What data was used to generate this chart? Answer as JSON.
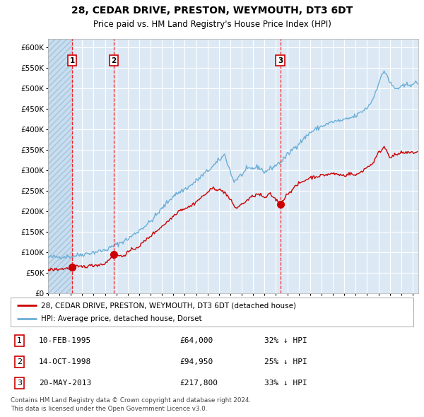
{
  "title": "28, CEDAR DRIVE, PRESTON, WEYMOUTH, DT3 6DT",
  "subtitle": "Price paid vs. HM Land Registry's House Price Index (HPI)",
  "hpi_label": "HPI: Average price, detached house, Dorset",
  "property_label": "28, CEDAR DRIVE, PRESTON, WEYMOUTH, DT3 6DT (detached house)",
  "transactions": [
    {
      "num": 1,
      "date": "10-FEB-1995",
      "price": 64000,
      "price_str": "£64,000",
      "pct": "32%",
      "year_x": 1995.11
    },
    {
      "num": 2,
      "date": "14-OCT-1998",
      "price": 94950,
      "price_str": "£94,950",
      "pct": "25%",
      "year_x": 1998.78
    },
    {
      "num": 3,
      "date": "20-MAY-2013",
      "price": 217800,
      "price_str": "£217,800",
      "pct": "33%",
      "year_x": 2013.38
    }
  ],
  "hpi_color": "#6baed6",
  "property_color": "#cc0000",
  "plot_bg_color": "#dce9f5",
  "grid_color": "#ffffff",
  "dashed_line_color": "#ff0000",
  "ylim": [
    0,
    620000
  ],
  "yticks": [
    0,
    50000,
    100000,
    150000,
    200000,
    250000,
    300000,
    350000,
    400000,
    450000,
    500000,
    550000,
    600000
  ],
  "xlim_start": 1993.0,
  "xlim_end": 2025.5,
  "footer_line1": "Contains HM Land Registry data © Crown copyright and database right 2024.",
  "footer_line2": "This data is licensed under the Open Government Licence v3.0.",
  "hpi_anchors": [
    [
      1993.0,
      88000
    ],
    [
      1995.0,
      90000
    ],
    [
      1997.0,
      100000
    ],
    [
      1998.0,
      105000
    ],
    [
      2000.0,
      132000
    ],
    [
      2002.0,
      175000
    ],
    [
      2004.0,
      238000
    ],
    [
      2005.5,
      262000
    ],
    [
      2007.5,
      310000
    ],
    [
      2008.5,
      338000
    ],
    [
      2009.3,
      272000
    ],
    [
      2010.5,
      302000
    ],
    [
      2011.5,
      308000
    ],
    [
      2012.0,
      295000
    ],
    [
      2013.0,
      312000
    ],
    [
      2013.5,
      322000
    ],
    [
      2014.5,
      352000
    ],
    [
      2015.5,
      378000
    ],
    [
      2016.0,
      392000
    ],
    [
      2017.0,
      407000
    ],
    [
      2018.0,
      418000
    ],
    [
      2019.0,
      422000
    ],
    [
      2020.0,
      432000
    ],
    [
      2021.0,
      452000
    ],
    [
      2021.5,
      472000
    ],
    [
      2022.0,
      512000
    ],
    [
      2022.5,
      542000
    ],
    [
      2022.75,
      532000
    ],
    [
      2023.0,
      512000
    ],
    [
      2023.5,
      498000
    ],
    [
      2024.0,
      502000
    ],
    [
      2024.5,
      508000
    ],
    [
      2025.3,
      512000
    ]
  ],
  "prop_anchors": [
    [
      1993.0,
      57000
    ],
    [
      1994.5,
      60000
    ],
    [
      1995.11,
      64000
    ],
    [
      1996.0,
      65000
    ],
    [
      1997.0,
      68000
    ],
    [
      1998.0,
      72000
    ],
    [
      1998.78,
      94950
    ],
    [
      1999.5,
      90000
    ],
    [
      2000.0,
      100000
    ],
    [
      2001.0,
      115000
    ],
    [
      2002.0,
      140000
    ],
    [
      2003.5,
      175000
    ],
    [
      2004.5,
      202000
    ],
    [
      2005.5,
      212000
    ],
    [
      2007.5,
      257000
    ],
    [
      2008.5,
      247000
    ],
    [
      2009.5,
      207000
    ],
    [
      2010.5,
      227000
    ],
    [
      2011.0,
      237000
    ],
    [
      2011.5,
      242000
    ],
    [
      2012.0,
      232000
    ],
    [
      2012.5,
      242000
    ],
    [
      2013.38,
      217800
    ],
    [
      2014.0,
      242000
    ],
    [
      2015.0,
      267000
    ],
    [
      2016.0,
      282000
    ],
    [
      2017.0,
      287000
    ],
    [
      2018.0,
      292000
    ],
    [
      2019.0,
      287000
    ],
    [
      2019.5,
      292000
    ],
    [
      2020.0,
      287000
    ],
    [
      2020.5,
      297000
    ],
    [
      2021.0,
      307000
    ],
    [
      2021.5,
      317000
    ],
    [
      2022.0,
      342000
    ],
    [
      2022.5,
      357000
    ],
    [
      2022.75,
      347000
    ],
    [
      2023.0,
      332000
    ],
    [
      2023.5,
      337000
    ],
    [
      2024.0,
      342000
    ],
    [
      2024.5,
      342000
    ],
    [
      2025.3,
      344000
    ]
  ]
}
